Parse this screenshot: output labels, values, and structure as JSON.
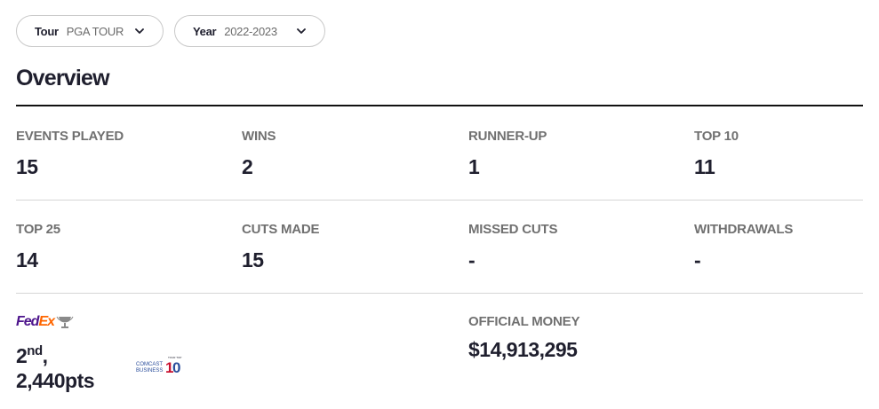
{
  "filters": {
    "tour": {
      "label": "Tour",
      "value": "PGA TOUR"
    },
    "year": {
      "label": "Year",
      "value": "2022-2023"
    }
  },
  "overview": {
    "title": "Overview",
    "stats_row1": [
      {
        "label": "EVENTS PLAYED",
        "value": "15"
      },
      {
        "label": "WINS",
        "value": "2"
      },
      {
        "label": "RUNNER-UP",
        "value": "1"
      },
      {
        "label": "TOP 10",
        "value": "11"
      }
    ],
    "stats_row2": [
      {
        "label": "TOP 25",
        "value": "14"
      },
      {
        "label": "CUTS MADE",
        "value": "15"
      },
      {
        "label": "MISSED CUTS",
        "value": "-"
      },
      {
        "label": "WITHDRAWALS",
        "value": "-"
      }
    ]
  },
  "fedex": {
    "logo_fed": "Fed",
    "logo_ex": "Ex",
    "rank_number": "2",
    "rank_suffix": "nd",
    "rank_sep": ",",
    "points": "2,440pts",
    "comcast_logo_text": "COMCAST BUSINESS",
    "comcast_badge_text": "TOUR TOP 10"
  },
  "official_money": {
    "label": "OFFICIAL MONEY",
    "value": "$14,913,295"
  },
  "colors": {
    "fedex_purple": "#4d148c",
    "fedex_orange": "#ff6600",
    "label_gray": "#707070",
    "text_dark": "#1f1f2e"
  }
}
